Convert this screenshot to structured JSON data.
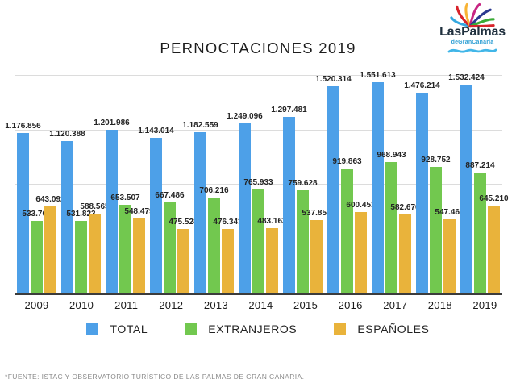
{
  "logo": {
    "title": "LasPalmas",
    "subtitle": "deGranCanaria",
    "icon": "palm-fronds-icon",
    "wave_icon": "wave-icon",
    "title_color": "#20303e",
    "subtitle_color": "#2e9fd4"
  },
  "chart_data": {
    "type": "bar",
    "title": "PERNOCTACIONES 2019",
    "xlabel": "",
    "ylabel": "",
    "grid": true,
    "legend_position": "bottom",
    "ylim": [
      0,
      1600000
    ],
    "y_gridlines": [
      400000,
      800000,
      1200000,
      1600000
    ],
    "categories": [
      "2009",
      "2010",
      "2011",
      "2012",
      "2013",
      "2014",
      "2015",
      "2016",
      "2017",
      "2018",
      "2019"
    ],
    "series": [
      {
        "name": "TOTAL",
        "color": "#4da0e8",
        "values": [
          1176856,
          1120388,
          1201986,
          1143014,
          1182559,
          1249096,
          1297481,
          1520314,
          1551613,
          1476214,
          1532424
        ],
        "labels": [
          "1.176.856",
          "1.120.388",
          "1.201.986",
          "1.143.014",
          "1.182.559",
          "1.249.096",
          "1.297.481",
          "1.520.314",
          "1.551.613",
          "1.476.214",
          "1.532.424"
        ]
      },
      {
        "name": "EXTRANJEROS",
        "color": "#72c84f",
        "values": [
          533764,
          531823,
          653507,
          667486,
          706216,
          765933,
          759628,
          919863,
          968943,
          928752,
          887214
        ],
        "labels": [
          "533.764",
          "531.823",
          "653.507",
          "667.486",
          "706.216",
          "765.933",
          "759.628",
          "919.863",
          "968.943",
          "928.752",
          "887.214"
        ]
      },
      {
        "name": "ESPAÑOLES",
        "color": "#e9b33b",
        "values": [
          643092,
          588565,
          548479,
          475528,
          476343,
          483163,
          537853,
          600451,
          582670,
          547462,
          645210
        ],
        "labels": [
          "643.092",
          "588.565",
          "548.479",
          "475.528",
          "476.343",
          "483.163",
          "537.853",
          "600.451",
          "582.670",
          "547.462",
          "645.210"
        ]
      }
    ],
    "colors": {
      "gridline": "#dcdcdc",
      "axis": "#3c3c3c",
      "value_label": "#242424"
    }
  },
  "footer": {
    "source": "*FUENTE: ISTAC Y OBSERVATORIO TURÍSTICO DE LAS PALMAS DE GRAN CANARIA."
  }
}
